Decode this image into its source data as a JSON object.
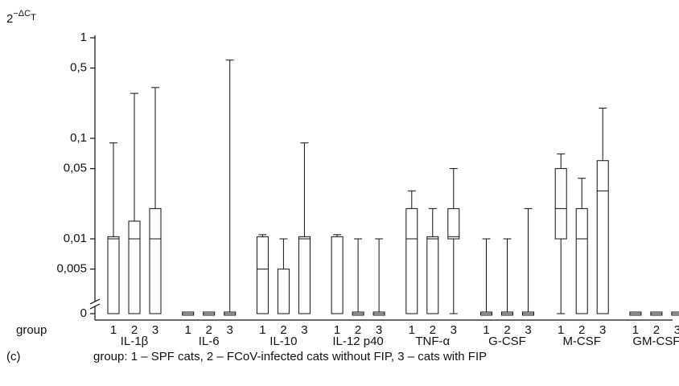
{
  "chart_data": {
    "type": "box",
    "y_label": {
      "base": "2",
      "exponent": "−ΔC",
      "exponent_sub": "T"
    },
    "x_label": "group",
    "panel_label": "(c)",
    "caption": "group: 1 – SPF cats, 2 – FCoV-infected cats without FIP, 3 – cats with FIP",
    "log_scale": true,
    "broken_axis_zero": true,
    "ylim": [
      0.0035,
      1
    ],
    "yticks": [
      1,
      {
        "value": 0.5,
        "label": "0,5"
      },
      {
        "value": 0.1,
        "label": "0,1"
      },
      {
        "value": 0.05,
        "label": "0,05"
      },
      {
        "value": 0.01,
        "label": "0,01"
      },
      {
        "value": 0.005,
        "label": "0,005"
      },
      0
    ],
    "categories": [
      "IL-1β",
      "IL-6",
      "IL-10",
      "IL-12 p40",
      "TNF-α",
      "G-CSF",
      "M-CSF",
      "GM-CSF"
    ],
    "group_labels": [
      "1",
      "2",
      "3"
    ],
    "box_stats": [
      "min",
      "q1",
      "median",
      "q3",
      "max"
    ],
    "boxes": [
      [
        [
          0,
          0,
          0.01,
          0.0105,
          0.09
        ],
        [
          0,
          0,
          0.01,
          0.015,
          0.28
        ],
        [
          0,
          0,
          0.01,
          0.02,
          0.32
        ]
      ],
      [
        [
          0,
          0,
          0,
          0,
          0
        ],
        [
          0,
          0,
          0,
          0,
          0
        ],
        [
          0,
          0,
          0,
          0,
          0.6
        ]
      ],
      [
        [
          0,
          0,
          0.005,
          0.0105,
          0.011
        ],
        [
          0,
          0,
          0,
          0.005,
          0.01
        ],
        [
          0,
          0,
          0.01,
          0.0105,
          0.09
        ]
      ],
      [
        [
          0,
          0,
          0,
          0.0105,
          0.011
        ],
        [
          0,
          0,
          0,
          0,
          0.01
        ],
        [
          0,
          0,
          0,
          0,
          0.01
        ]
      ],
      [
        [
          0,
          0,
          0.01,
          0.02,
          0.03
        ],
        [
          0,
          0,
          0.01,
          0.0105,
          0.02
        ],
        [
          0,
          0.01,
          0.0105,
          0.02,
          0.05
        ]
      ],
      [
        [
          0,
          0,
          0,
          0,
          0.01
        ],
        [
          0,
          0,
          0,
          0,
          0.01
        ],
        [
          0,
          0,
          0,
          0,
          0.02
        ]
      ],
      [
        [
          0,
          0.01,
          0.02,
          0.05,
          0.07
        ],
        [
          0,
          0,
          0.01,
          0.02,
          0.04
        ],
        [
          0,
          0,
          0.03,
          0.06,
          0.2
        ]
      ],
      [
        [
          0,
          0,
          0,
          0,
          0
        ],
        [
          0,
          0,
          0,
          0,
          0
        ],
        [
          0,
          0,
          0,
          0,
          0
        ]
      ]
    ],
    "color": "#111111"
  }
}
